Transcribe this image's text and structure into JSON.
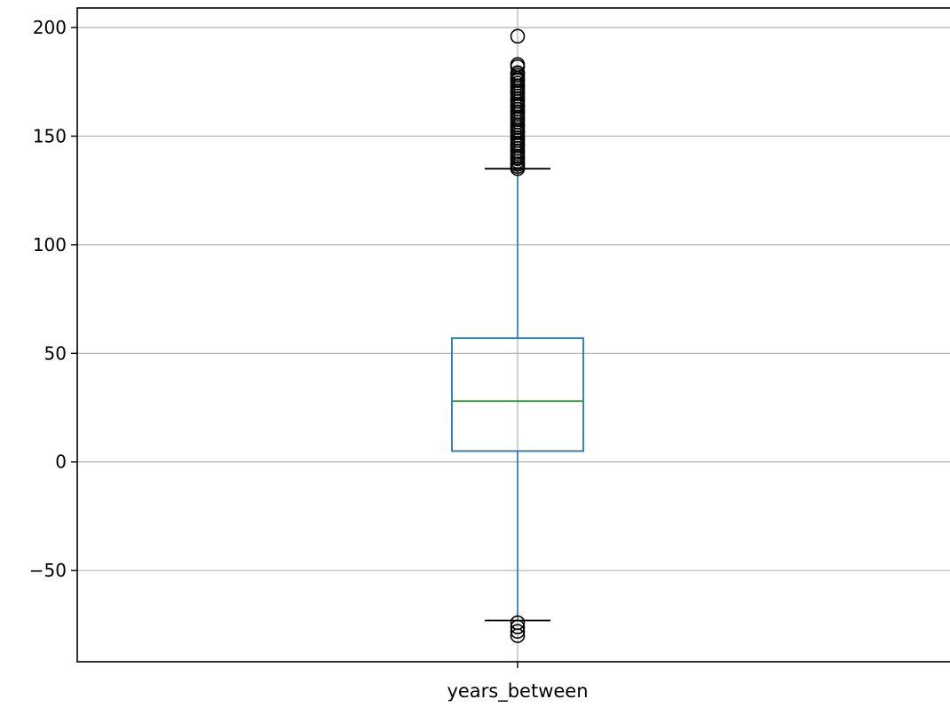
{
  "chart_data": {
    "type": "box",
    "categories": [
      "years_between"
    ],
    "boxes": [
      {
        "name": "years_between",
        "whisker_low": -73,
        "q1": 5,
        "median": 28,
        "q3": 57,
        "whisker_high": 135,
        "outliers_high": [
          135,
          137,
          140,
          143,
          146,
          149,
          152,
          155,
          158,
          161,
          164,
          167,
          170,
          173,
          176,
          179,
          182,
          183,
          196
        ],
        "outliers_low": [
          -74,
          -76,
          -78,
          -80
        ]
      }
    ],
    "yticks": [
      200,
      150,
      100,
      50,
      0,
      -50
    ],
    "ytick_labels": [
      "200",
      "150",
      "100",
      "50",
      "0",
      "−50"
    ],
    "ylim": [
      -92,
      209
    ],
    "grid": true,
    "title": "",
    "xlabel": "",
    "ylabel": "",
    "colors": {
      "box": "#1f77b4",
      "median": "#2ca02c",
      "whisker_cap": "#000000",
      "grid": "#b0b0b0",
      "outlier": "#000000"
    }
  }
}
